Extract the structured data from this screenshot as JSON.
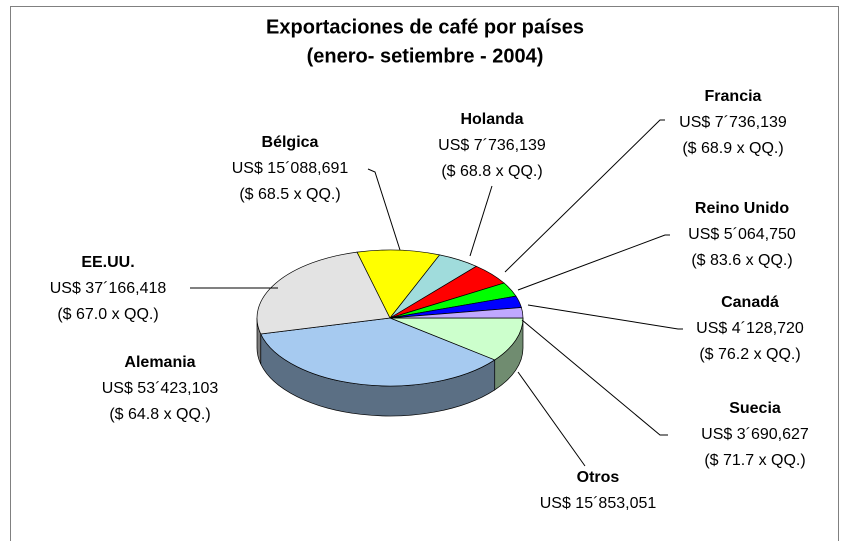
{
  "chart_data": {
    "type": "pie",
    "title": "Exportaciones de café por países",
    "subtitle": "(enero- setiembre - 2004)",
    "start_angle": 0,
    "categories": [
      "Otros",
      "Alemania",
      "EE.UU.",
      "Bélgica",
      "Holanda",
      "Francia",
      "Reino Unido",
      "Canadá",
      "Suecia"
    ],
    "values": [
      15853051,
      53423103,
      37166418,
      15088691,
      7736139,
      7736139,
      5064750,
      4128720,
      3690627
    ],
    "value_labels": [
      "US$  15´853,051",
      "US$ 53´423,103",
      "US$ 37´166,418",
      "US$ 15´088,691",
      "US$ 7´736,139",
      "US$ 7´736,139",
      "US$  5´064,750",
      "US$  4´128,720",
      "US$  3´690,627"
    ],
    "price_labels": [
      null,
      "($ 64.8 x QQ.)",
      "($ 67.0 x QQ.)",
      "($ 68.5 x QQ.)",
      "($ 68.8 x QQ.)",
      "($ 68.9 x QQ.)",
      "($ 83.6 x QQ.)",
      "($ 76.2 x QQ.)",
      "($ 71.7 x QQ.)"
    ],
    "colors": [
      "#ccffcc",
      "#a6caf0",
      "#e3e3e3",
      "#ffff00",
      "#a0dcdc",
      "#ff0000",
      "#00ff00",
      "#0000ff",
      "#c0a8ff"
    ]
  }
}
